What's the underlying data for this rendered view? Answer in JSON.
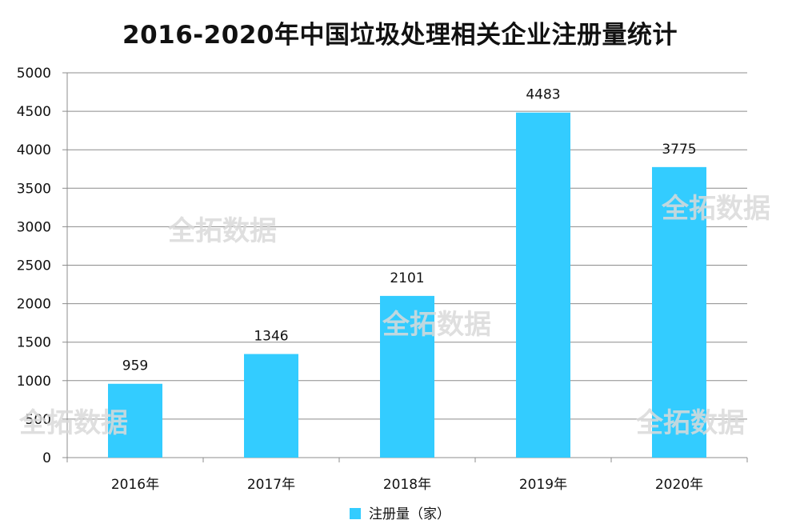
{
  "chart_data": {
    "type": "bar",
    "title": "2016-2020年中国垃圾处理相关企业注册量统计",
    "categories": [
      "2016年",
      "2017年",
      "2018年",
      "2019年",
      "2020年"
    ],
    "series": [
      {
        "name": "注册量（家）",
        "values": [
          959,
          1346,
          2101,
          4483,
          3775
        ],
        "color": "#33ccff"
      }
    ],
    "yticks": [
      0,
      500,
      1000,
      1500,
      2000,
      2500,
      3000,
      3500,
      4000,
      4500,
      5000
    ],
    "ylim": [
      0,
      5000
    ],
    "grid": true,
    "legend_position": "bottom"
  },
  "watermark": "全拓数据"
}
